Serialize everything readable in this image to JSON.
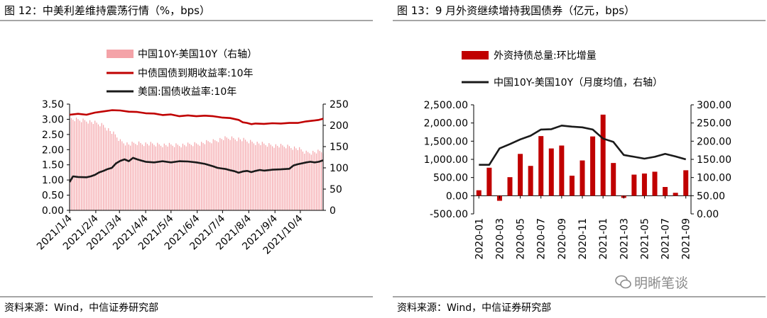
{
  "left": {
    "title": "图 12：中美利差维持震荡行情（%，bps）",
    "source": "资料来源：Wind，中信证券研究部",
    "chart_data": {
      "type": "line",
      "legend": [
        {
          "name": "中国10Y-美国10Y（右轴）",
          "type": "bar",
          "color": "#f4a3a8"
        },
        {
          "name": "中债国债到期收益率:10年",
          "type": "line",
          "color": "#c00000"
        },
        {
          "name": "美国:国债收益率:10年",
          "type": "line",
          "color": "#1a1a1a"
        }
      ],
      "yleft": {
        "ticks": [
          "3.50",
          "3.00",
          "2.50",
          "2.00",
          "1.50",
          "1.00",
          "0.50",
          "0.00"
        ],
        "range": [
          0,
          3.5
        ]
      },
      "yright": {
        "ticks": [
          "250",
          "200",
          "150",
          "100",
          "50",
          "0"
        ],
        "range": [
          0,
          250
        ]
      },
      "x_ticks": [
        "2021/1/4",
        "2021/2/4",
        "2021/3/4",
        "2021/4/4",
        "2021/5/4",
        "2021/6/4",
        "2021/7/4",
        "2021/8/4",
        "2021/9/4",
        "2021/10/4"
      ],
      "x_range_days": [
        0,
        300
      ],
      "series": [
        {
          "name": "中债国债到期收益率:10年",
          "axis": "left",
          "points": [
            [
              0,
              3.15
            ],
            [
              10,
              3.18
            ],
            [
              20,
              3.15
            ],
            [
              30,
              3.22
            ],
            [
              40,
              3.26
            ],
            [
              50,
              3.3
            ],
            [
              60,
              3.29
            ],
            [
              70,
              3.25
            ],
            [
              80,
              3.24
            ],
            [
              90,
              3.2
            ],
            [
              100,
              3.19
            ],
            [
              110,
              3.14
            ],
            [
              120,
              3.16
            ],
            [
              130,
              3.1
            ],
            [
              140,
              3.13
            ],
            [
              150,
              3.1
            ],
            [
              160,
              3.12
            ],
            [
              170,
              3.1
            ],
            [
              180,
              3.06
            ],
            [
              190,
              3.04
            ],
            [
              200,
              2.98
            ],
            [
              205,
              2.9
            ],
            [
              210,
              2.88
            ],
            [
              215,
              2.84
            ],
            [
              220,
              2.86
            ],
            [
              230,
              2.85
            ],
            [
              240,
              2.87
            ],
            [
              250,
              2.86
            ],
            [
              260,
              2.88
            ],
            [
              270,
              2.88
            ],
            [
              280,
              2.93
            ],
            [
              290,
              2.96
            ],
            [
              295,
              2.98
            ],
            [
              300,
              3.02
            ]
          ]
        },
        {
          "name": "美国:国债收益率:10年",
          "axis": "left",
          "points": [
            [
              0,
              0.93
            ],
            [
              4,
              1.12
            ],
            [
              10,
              1.1
            ],
            [
              20,
              1.09
            ],
            [
              25,
              1.12
            ],
            [
              30,
              1.17
            ],
            [
              35,
              1.25
            ],
            [
              40,
              1.3
            ],
            [
              45,
              1.36
            ],
            [
              50,
              1.4
            ],
            [
              55,
              1.55
            ],
            [
              60,
              1.63
            ],
            [
              65,
              1.68
            ],
            [
              70,
              1.62
            ],
            [
              75,
              1.73
            ],
            [
              80,
              1.68
            ],
            [
              85,
              1.64
            ],
            [
              90,
              1.6
            ],
            [
              100,
              1.58
            ],
            [
              110,
              1.62
            ],
            [
              120,
              1.58
            ],
            [
              130,
              1.62
            ],
            [
              140,
              1.61
            ],
            [
              150,
              1.58
            ],
            [
              160,
              1.53
            ],
            [
              165,
              1.49
            ],
            [
              170,
              1.45
            ],
            [
              175,
              1.4
            ],
            [
              180,
              1.38
            ],
            [
              185,
              1.36
            ],
            [
              190,
              1.32
            ],
            [
              195,
              1.29
            ],
            [
              200,
              1.24
            ],
            [
              205,
              1.28
            ],
            [
              210,
              1.3
            ],
            [
              215,
              1.26
            ],
            [
              220,
              1.3
            ],
            [
              225,
              1.33
            ],
            [
              230,
              1.31
            ],
            [
              240,
              1.34
            ],
            [
              250,
              1.35
            ],
            [
              260,
              1.37
            ],
            [
              265,
              1.48
            ],
            [
              270,
              1.52
            ],
            [
              275,
              1.55
            ],
            [
              280,
              1.58
            ],
            [
              285,
              1.6
            ],
            [
              290,
              1.58
            ],
            [
              295,
              1.6
            ],
            [
              300,
              1.65
            ]
          ]
        },
        {
          "name": "中国10Y-美国10Y（右轴）",
          "axis": "right",
          "type": "bar",
          "points": [
            [
              0,
              214
            ],
            [
              20,
              211
            ],
            [
              40,
              200
            ],
            [
              55,
              175
            ],
            [
              60,
              163
            ],
            [
              70,
              155
            ],
            [
              80,
              158
            ],
            [
              100,
              155
            ],
            [
              120,
              153
            ],
            [
              140,
              154
            ],
            [
              160,
              159
            ],
            [
              170,
              163
            ],
            [
              180,
              168
            ],
            [
              190,
              170
            ],
            [
              200,
              168
            ],
            [
              210,
              163
            ],
            [
              230,
              155
            ],
            [
              250,
              151
            ],
            [
              260,
              150
            ],
            [
              270,
              145
            ],
            [
              280,
              136
            ],
            [
              290,
              137
            ],
            [
              300,
              138
            ]
          ]
        }
      ]
    }
  },
  "right": {
    "title": "图 13：9 月外资继续增持我国债券（亿元，bps）",
    "source": "资料来源：Wind，中信证券研究部",
    "chart_data": {
      "type": "bar",
      "legend": [
        {
          "name": "外资持债总量:环比增量",
          "type": "bar",
          "color": "#c00000"
        },
        {
          "name": "中国10Y-美国10Y（月度均值，右轴）",
          "type": "line",
          "color": "#1a1a1a"
        }
      ],
      "yleft": {
        "ticks": [
          "2,500.00",
          "2,000.00",
          "1,500.00",
          "1,000.00",
          "500.00",
          "0.00",
          "-500.00"
        ],
        "range": [
          -500,
          2500
        ]
      },
      "yright": {
        "ticks": [
          "300.00",
          "250.00",
          "200.00",
          "150.00",
          "100.00",
          "50.00",
          "0.00"
        ],
        "range": [
          0,
          300
        ]
      },
      "categories": [
        "2020-01",
        "2020-02",
        "2020-03",
        "2020-04",
        "2020-05",
        "2020-06",
        "2020-07",
        "2020-08",
        "2020-09",
        "2020-10",
        "2020-11",
        "2020-12",
        "2021-01",
        "2021-02",
        "2021-03",
        "2021-04",
        "2021-05",
        "2021-06",
        "2021-07",
        "2021-08",
        "2021-09"
      ],
      "x_tick_labels": [
        "2020-01",
        "2020-03",
        "2020-05",
        "2020-07",
        "2020-09",
        "2020-11",
        "2021-01",
        "2021-03",
        "2021-05",
        "2021-07",
        "2021-09"
      ],
      "series": [
        {
          "name": "外资持债总量:环比增量",
          "axis": "left",
          "values": [
            150,
            770,
            -140,
            510,
            1150,
            820,
            1640,
            1300,
            1380,
            550,
            970,
            1630,
            2230,
            900,
            -60,
            580,
            610,
            660,
            240,
            80,
            700
          ]
        },
        {
          "name": "中国10Y-美国10Y（月度均值，右轴）",
          "axis": "right",
          "values": [
            135,
            135,
            180,
            192,
            205,
            215,
            232,
            233,
            243,
            240,
            238,
            232,
            207,
            198,
            162,
            157,
            152,
            157,
            165,
            158,
            150
          ]
        }
      ]
    }
  },
  "watermark": {
    "text": "明晰笔谈"
  }
}
